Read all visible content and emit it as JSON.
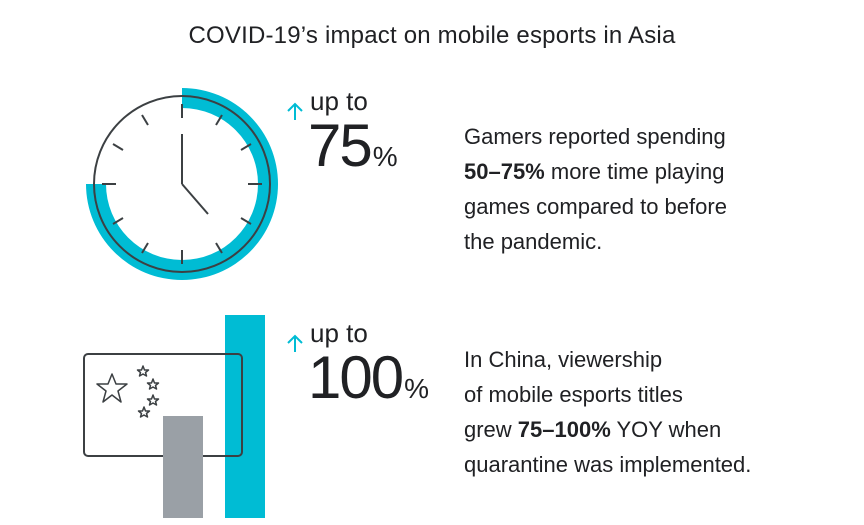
{
  "title": "COVID-19’s impact on mobile esports in Asia",
  "colors": {
    "accent": "#00bcd4",
    "gray": "#9aa0a6",
    "text": "#202124",
    "line": "#3c4043"
  },
  "stat1": {
    "prefix": "up to",
    "value": "75",
    "unit": "%",
    "icon": "up-arrow-icon",
    "desc_lines": [
      [
        "Gamers reported spending"
      ],
      [
        "50–75%",
        " more time playing"
      ],
      [
        "games compared to before"
      ],
      [
        "the pandemic."
      ]
    ]
  },
  "stat2": {
    "prefix": "up to",
    "value": "100",
    "unit": "%",
    "icon": "up-arrow-icon",
    "desc_lines": [
      [
        "In China, viewership"
      ],
      [
        "of mobile esports titles"
      ],
      [
        "grew ",
        "75–100%",
        " YOY when"
      ],
      [
        "quarantine was implemented."
      ]
    ]
  },
  "illustrations": {
    "clock": "clock-icon",
    "flag": "china-flag-icon"
  }
}
